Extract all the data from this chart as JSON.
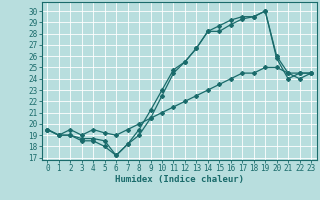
{
  "xlabel": "Humidex (Indice chaleur)",
  "bg_color": "#b8dede",
  "line_color": "#1a6b6b",
  "grid_color": "#ffffff",
  "xlim": [
    -0.5,
    23.5
  ],
  "ylim": [
    16.8,
    30.8
  ],
  "yticks": [
    17,
    18,
    19,
    20,
    21,
    22,
    23,
    24,
    25,
    26,
    27,
    28,
    29,
    30
  ],
  "xticks": [
    0,
    1,
    2,
    3,
    4,
    5,
    6,
    7,
    8,
    9,
    10,
    11,
    12,
    13,
    14,
    15,
    16,
    17,
    18,
    19,
    20,
    21,
    22,
    23
  ],
  "line1_x": [
    0,
    1,
    2,
    3,
    4,
    5,
    6,
    7,
    8,
    9,
    10,
    11,
    12,
    13,
    14,
    15,
    16,
    17,
    18,
    19,
    20,
    21,
    22,
    23
  ],
  "line1_y": [
    19.5,
    19.0,
    19.0,
    18.5,
    18.5,
    18.0,
    17.2,
    18.2,
    19.5,
    21.2,
    23.0,
    24.8,
    25.5,
    26.7,
    28.2,
    28.2,
    28.8,
    29.3,
    29.5,
    30.0,
    26.0,
    24.5,
    24.0,
    24.5
  ],
  "line2_x": [
    0,
    1,
    2,
    3,
    4,
    5,
    6,
    7,
    8,
    9,
    10,
    11,
    12,
    13,
    14,
    15,
    16,
    17,
    18,
    19,
    20,
    21,
    22,
    23
  ],
  "line2_y": [
    19.5,
    19.0,
    19.0,
    18.7,
    18.7,
    18.5,
    17.2,
    18.2,
    19.0,
    20.5,
    22.5,
    24.5,
    25.5,
    26.7,
    28.2,
    28.7,
    29.2,
    29.5,
    29.5,
    30.0,
    25.8,
    24.0,
    24.5,
    24.5
  ],
  "line3_x": [
    0,
    1,
    2,
    3,
    4,
    5,
    6,
    7,
    8,
    9,
    10,
    11,
    12,
    13,
    14,
    15,
    16,
    17,
    18,
    19,
    20,
    21,
    22,
    23
  ],
  "line3_y": [
    19.5,
    19.0,
    19.5,
    19.0,
    19.5,
    19.2,
    19.0,
    19.5,
    20.0,
    20.5,
    21.0,
    21.5,
    22.0,
    22.5,
    23.0,
    23.5,
    24.0,
    24.5,
    24.5,
    25.0,
    25.0,
    24.5,
    24.5,
    24.5
  ],
  "tick_fontsize": 5.5,
  "xlabel_fontsize": 6.5
}
